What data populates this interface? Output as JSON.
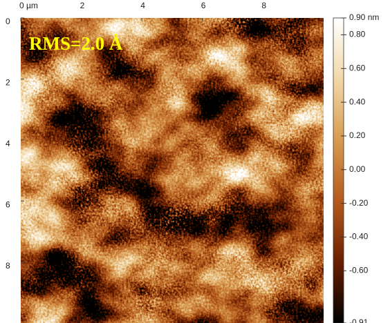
{
  "chart_data": {
    "type": "heatmap",
    "annotation": "RMS=2.0 Å",
    "xlim": [
      0,
      10
    ],
    "ylim": [
      0,
      10
    ],
    "xticks": [
      {
        "value": 0,
        "label": "0 µm"
      },
      2,
      4,
      6,
      8
    ],
    "yticks": [
      0,
      2,
      4,
      6,
      8
    ],
    "clim": [
      -0.91,
      0.9
    ],
    "cticks": [
      {
        "value": 0.9,
        "label": "0.90 nm"
      },
      {
        "value": 0.8,
        "label": "0.80"
      },
      {
        "value": 0.6,
        "label": "0.60"
      },
      {
        "value": 0.4,
        "label": "0.40"
      },
      {
        "value": 0.2,
        "label": "0.20"
      },
      {
        "value": 0,
        "label": "0.00"
      },
      {
        "value": -0.2,
        "label": "-0.20"
      },
      {
        "value": -0.4,
        "label": "-0.40"
      },
      {
        "value": -0.6,
        "label": "-0.60"
      },
      {
        "value": -0.91,
        "label": "-0.91"
      }
    ],
    "colormap": [
      "#000000",
      "#6a1e00",
      "#b45a1c",
      "#d89a50",
      "#f2d8a8",
      "#ffffff"
    ]
  }
}
